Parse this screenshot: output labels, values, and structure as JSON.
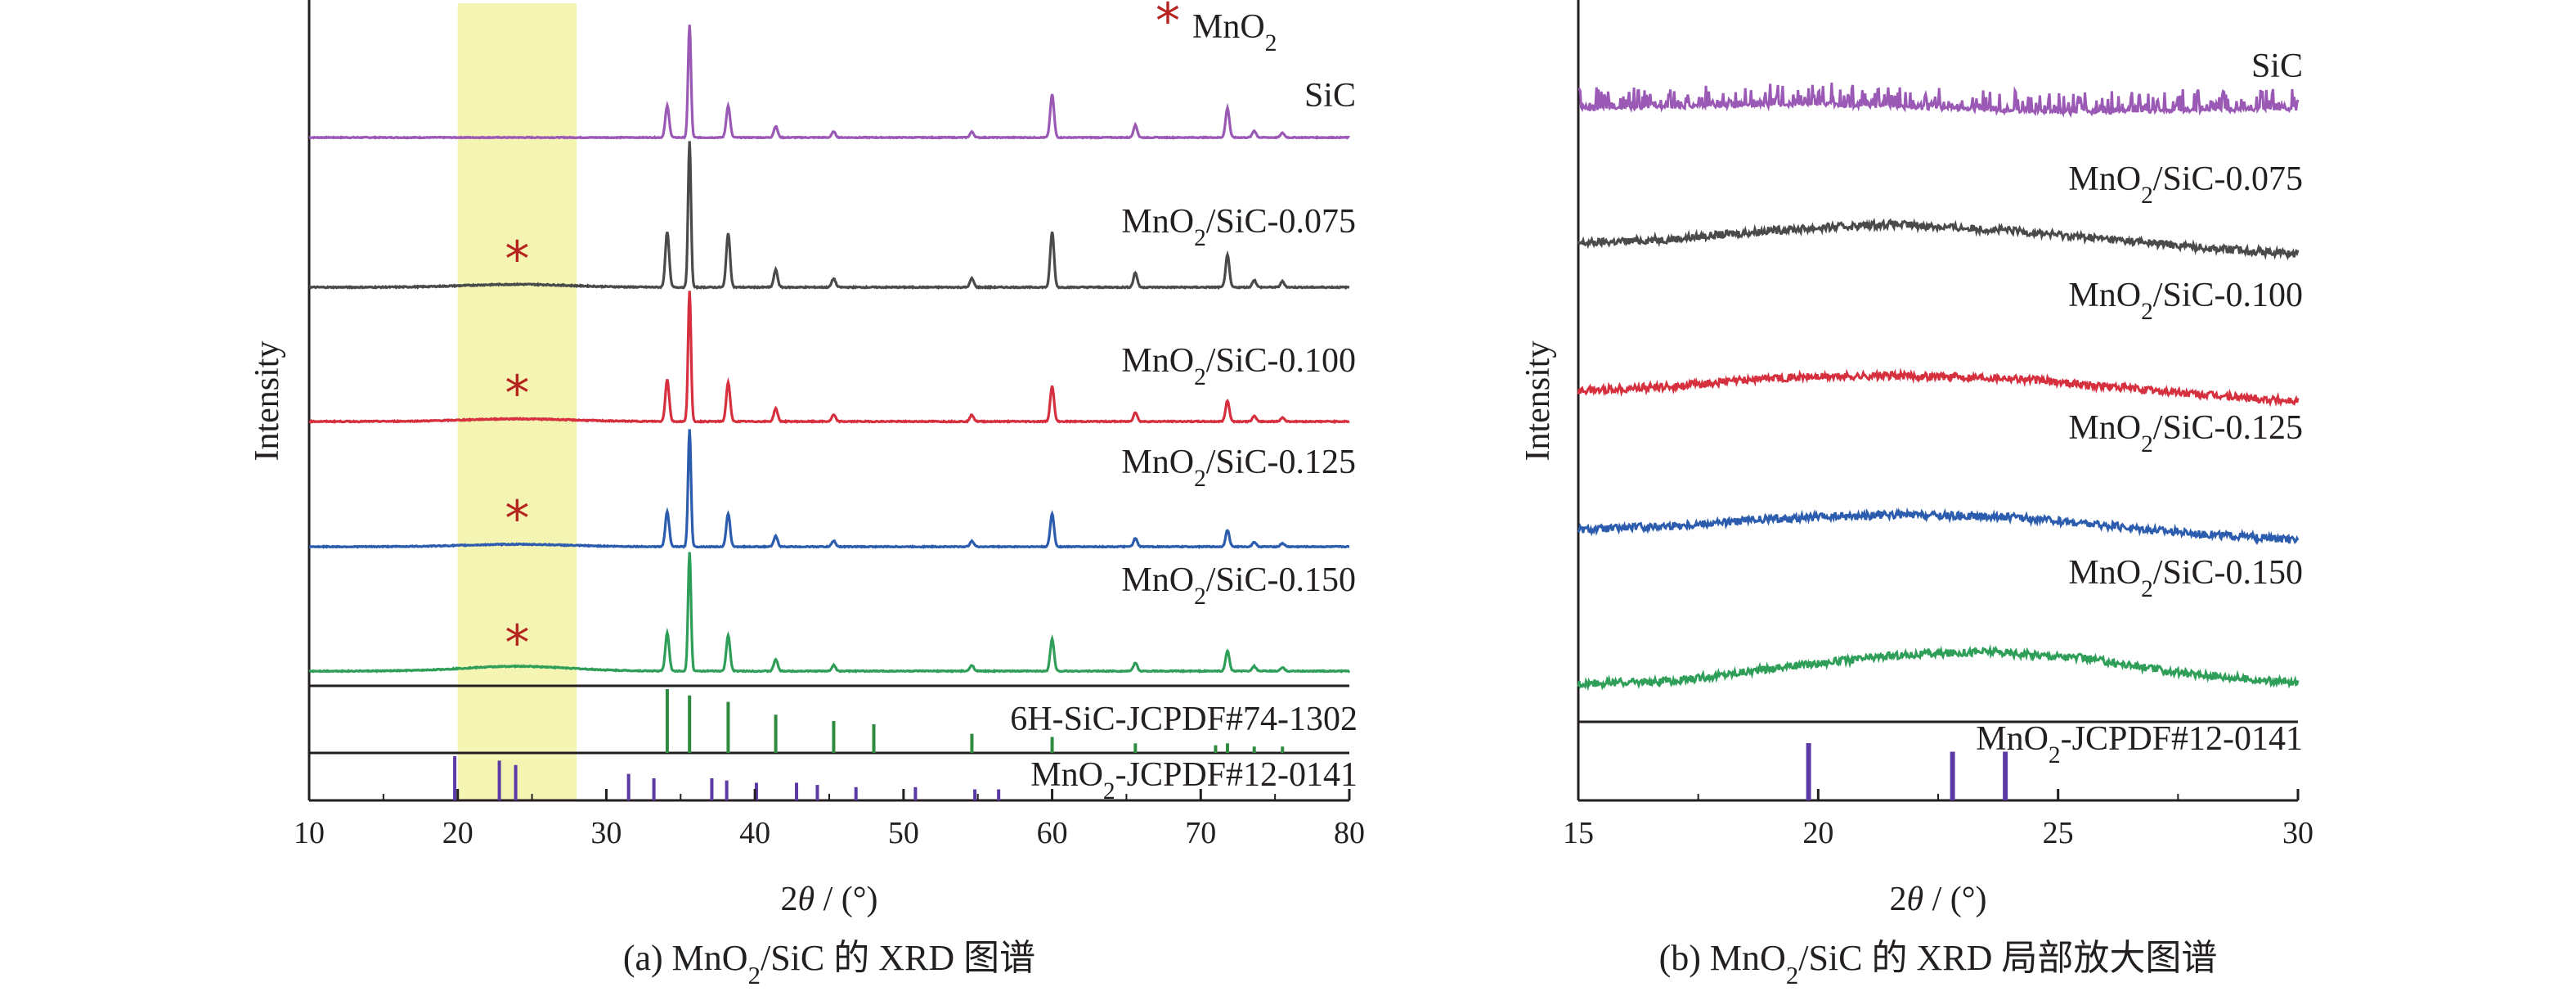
{
  "chart_data": [
    {
      "type": "line",
      "caption": "(a) MnO₂/SiC 的 XRD 图谱",
      "xlabel": "2θ / (°)",
      "ylabel": "Intensity",
      "xlim": [
        10,
        80
      ],
      "xticks": [
        10,
        20,
        30,
        40,
        50,
        60,
        70,
        80
      ],
      "highlight_band": [
        20,
        28
      ],
      "legend": "★ MnO₂",
      "series": [
        {
          "name": "SiC",
          "color": "#9b59b6",
          "baseline_hump": 0,
          "star": null,
          "x": [
            34.1,
            35.6,
            38.2,
            41.4,
            45.3,
            54.6,
            60.0,
            65.6,
            71.8,
            73.6,
            75.5
          ],
          "y": [
            0.28,
            1.0,
            0.28,
            0.1,
            0.05,
            0.05,
            0.38,
            0.11,
            0.26,
            0.06,
            0.04
          ]
        },
        {
          "name": "MnO₂/SiC-0.075",
          "color": "#4a4a4a",
          "baseline_hump": 0.02,
          "star": 24,
          "x": [
            34.1,
            35.6,
            38.2,
            41.4,
            45.3,
            54.6,
            60.0,
            65.6,
            71.8,
            73.6,
            75.5
          ],
          "y": [
            0.38,
            1.0,
            0.37,
            0.12,
            0.06,
            0.06,
            0.38,
            0.1,
            0.22,
            0.05,
            0.04
          ]
        },
        {
          "name": "MnO₂/SiC-0.100",
          "color": "#d6303f",
          "baseline_hump": 0.02,
          "star": 24,
          "x": [
            34.1,
            35.6,
            38.2,
            41.4,
            45.3,
            54.6,
            60.0,
            65.6,
            71.8,
            73.6,
            75.5
          ],
          "y": [
            0.32,
            1.0,
            0.3,
            0.1,
            0.05,
            0.05,
            0.27,
            0.07,
            0.16,
            0.04,
            0.03
          ]
        },
        {
          "name": "MnO₂/SiC-0.125",
          "color": "#2b5cad",
          "baseline_hump": 0.02,
          "star": 24,
          "x": [
            34.1,
            35.6,
            38.2,
            41.4,
            45.3,
            54.6,
            60.0,
            65.6,
            71.8,
            73.6,
            75.5
          ],
          "y": [
            0.3,
            1.0,
            0.28,
            0.09,
            0.05,
            0.05,
            0.28,
            0.07,
            0.14,
            0.04,
            0.03
          ]
        },
        {
          "name": "MnO₂/SiC-0.150",
          "color": "#2e9e58",
          "baseline_hump": 0.04,
          "star": 24,
          "x": [
            34.1,
            35.6,
            38.2,
            41.4,
            45.3,
            54.6,
            60.0,
            65.6,
            71.8,
            73.6,
            75.5
          ],
          "y": [
            0.32,
            1.0,
            0.3,
            0.1,
            0.05,
            0.05,
            0.27,
            0.07,
            0.17,
            0.04,
            0.03
          ]
        }
      ],
      "reference_patterns": [
        {
          "name": "6H-SiC-JCPDF#74-1302",
          "color": "#2e8b3f",
          "x": [
            34.1,
            35.6,
            38.2,
            41.4,
            45.3,
            48.0,
            54.6,
            60.0,
            65.6,
            71.0,
            71.8,
            73.6,
            75.5
          ],
          "y": [
            1.0,
            0.9,
            0.8,
            0.6,
            0.5,
            0.45,
            0.3,
            0.25,
            0.15,
            0.12,
            0.15,
            0.1,
            0.1
          ]
        },
        {
          "name": "MnO₂-JCPDF#12-0141",
          "color": "#5b3aa6",
          "x": [
            19.8,
            22.8,
            23.9,
            31.5,
            33.2,
            37.1,
            38.1,
            40.1,
            42.8,
            44.2,
            46.8,
            50.8,
            54.8,
            56.4
          ],
          "y": [
            1.0,
            0.9,
            0.8,
            0.6,
            0.5,
            0.5,
            0.45,
            0.4,
            0.4,
            0.35,
            0.3,
            0.3,
            0.25,
            0.25
          ]
        }
      ]
    },
    {
      "type": "line",
      "caption": "(b) MnO₂/SiC 的 XRD 局部放大图谱",
      "xlabel": "2θ / (°)",
      "ylabel": "Intensity",
      "xlim": [
        15,
        30
      ],
      "xticks": [
        15,
        20,
        25,
        30
      ],
      "series": [
        {
          "name": "SiC",
          "color": "#9b59b6",
          "x": [
            15,
            20,
            25,
            30
          ],
          "y": [
            0.05,
            0.07,
            0.03,
            0.05
          ],
          "noise": "spiky"
        },
        {
          "name": "MnO₂/SiC-0.075",
          "color": "#4a4a4a",
          "x": [
            15,
            17,
            19,
            21.5,
            24,
            26,
            28,
            30
          ],
          "y": [
            0.08,
            0.1,
            0.14,
            0.17,
            0.14,
            0.1,
            0.06,
            0.03
          ]
        },
        {
          "name": "MnO₂/SiC-0.100",
          "color": "#d6303f",
          "x": [
            15,
            17,
            19,
            21.5,
            24,
            26,
            28,
            30
          ],
          "y": [
            0.08,
            0.1,
            0.14,
            0.15,
            0.14,
            0.1,
            0.06,
            0.03
          ]
        },
        {
          "name": "MnO₂/SiC-0.125",
          "color": "#2b5cad",
          "x": [
            15,
            17,
            19,
            21.5,
            24,
            26,
            28,
            30
          ],
          "y": [
            0.08,
            0.1,
            0.13,
            0.15,
            0.14,
            0.1,
            0.06,
            0.03
          ]
        },
        {
          "name": "MnO₂/SiC-0.150",
          "color": "#2e9e58",
          "x": [
            15,
            17,
            19,
            21.5,
            23.5,
            25.5,
            27.5,
            30
          ],
          "y": [
            0.05,
            0.06,
            0.12,
            0.18,
            0.2,
            0.17,
            0.1,
            0.05
          ]
        }
      ],
      "reference_patterns": [
        {
          "name": "MnO₂-JCPDF#12-0141",
          "color": "#5b3aa6",
          "x": [
            19.8,
            22.8,
            23.9
          ],
          "y": [
            1.0,
            0.85,
            0.85
          ]
        }
      ]
    }
  ]
}
